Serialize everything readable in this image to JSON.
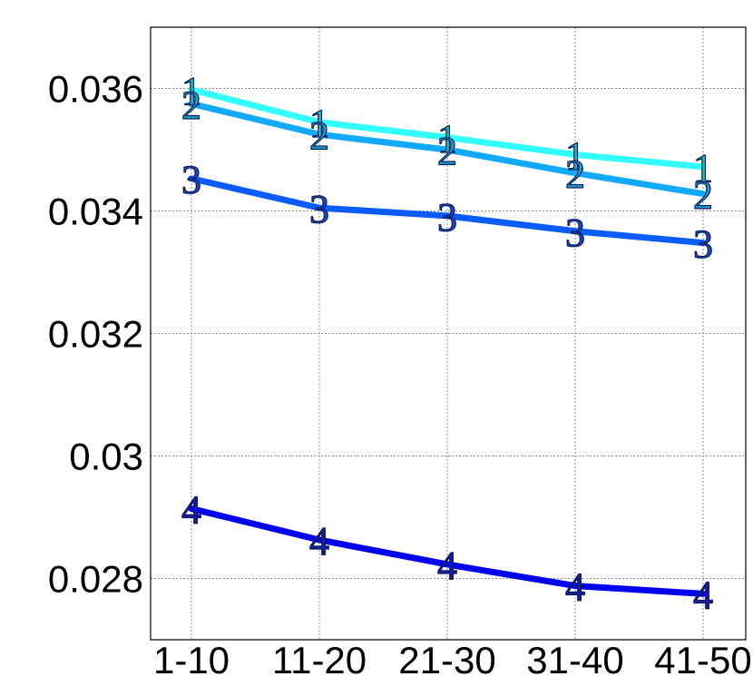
{
  "chart_data": {
    "type": "line",
    "title": "",
    "xlabel": "",
    "ylabel": "",
    "categories": [
      "1-10",
      "11-20",
      "21-30",
      "31-40",
      "41-50"
    ],
    "ylim": [
      0.027,
      0.037
    ],
    "yticks": [
      0.028,
      0.03,
      0.032,
      0.034,
      0.036
    ],
    "ytick_labels": [
      "0.028",
      "0.03",
      "0.032",
      "0.034",
      "0.036"
    ],
    "grid": true,
    "legend": "none",
    "series": [
      {
        "marker": "1",
        "color": "#33ffff",
        "marker_color": "#22bbbb",
        "values": [
          0.03598,
          0.03545,
          0.0352,
          0.03492,
          0.03472
        ]
      },
      {
        "marker": "2",
        "color": "#11aaff",
        "marker_color": "#1f9fcf",
        "values": [
          0.03575,
          0.03525,
          0.035,
          0.03462,
          0.03428
        ]
      },
      {
        "marker": "3",
        "color": "#0a5cff",
        "marker_color": "#1f44c8",
        "values": [
          0.03453,
          0.03405,
          0.03392,
          0.03367,
          0.03348
        ]
      },
      {
        "marker": "4",
        "color": "#0000ee",
        "marker_color": "#1a1aa0",
        "values": [
          0.02914,
          0.02863,
          0.02823,
          0.02788,
          0.02775
        ]
      }
    ]
  }
}
